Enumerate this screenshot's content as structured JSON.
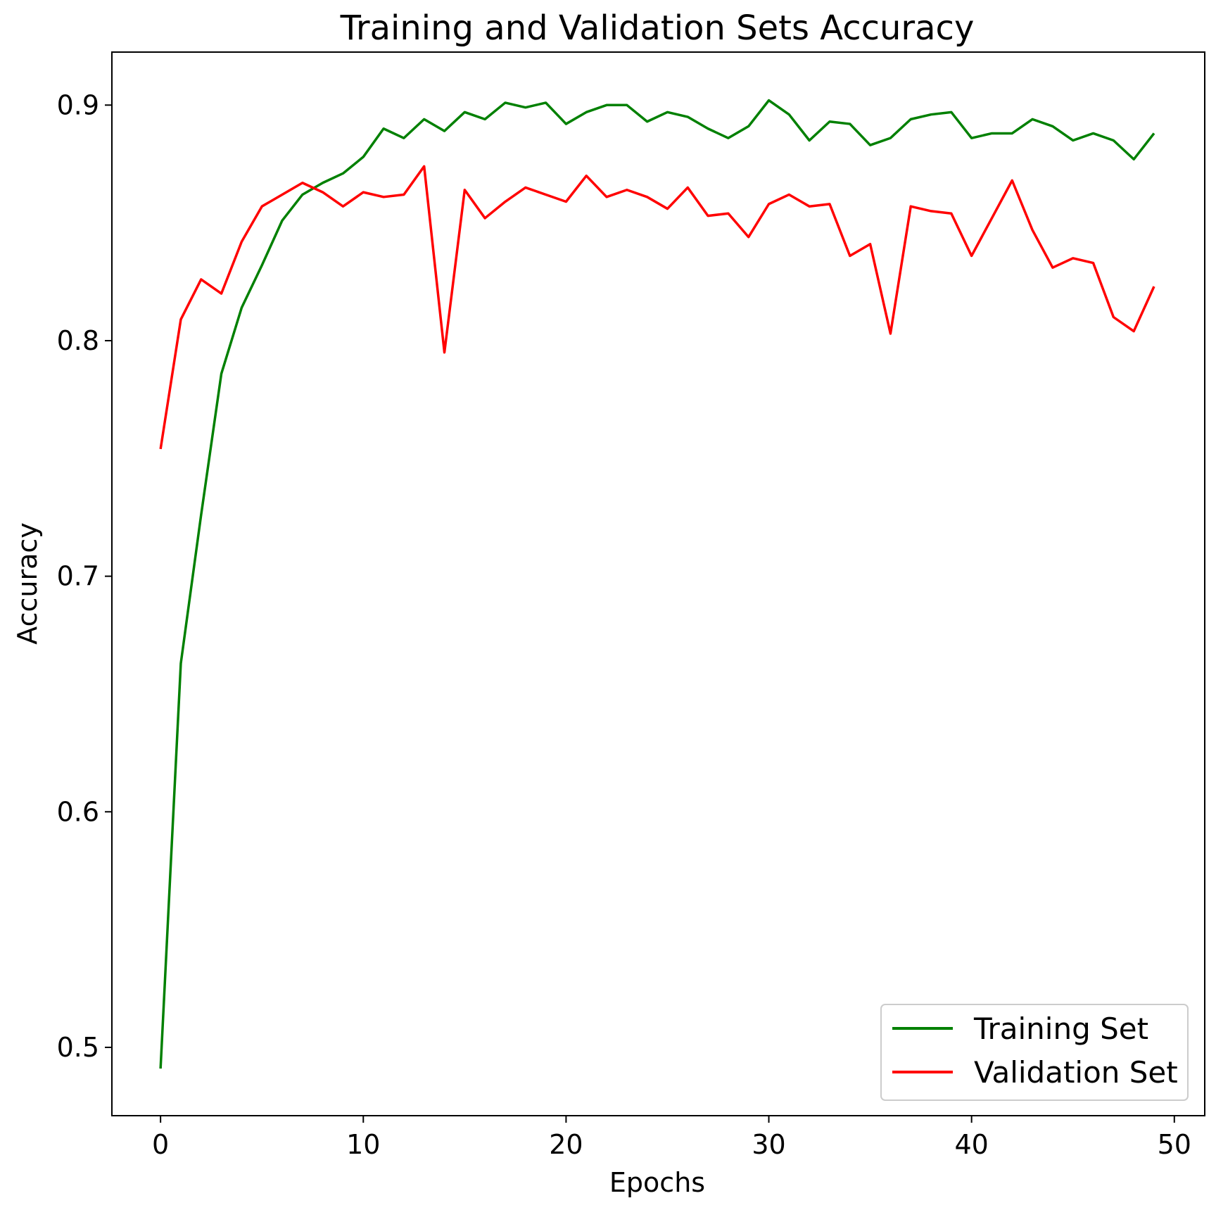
{
  "chart_data": {
    "type": "line",
    "title": "Training and Validation Sets Accuracy",
    "xlabel": "Epochs",
    "ylabel": "Accuracy",
    "xlim": [
      -2.4,
      51.5
    ],
    "ylim": [
      0.471,
      0.9225
    ],
    "xticks": [
      0,
      10,
      20,
      30,
      40,
      50
    ],
    "xtick_labels": [
      "0",
      "10",
      "20",
      "30",
      "40",
      "50"
    ],
    "yticks": [
      0.5,
      0.6,
      0.7,
      0.8,
      0.9
    ],
    "ytick_labels": [
      "0.5",
      "0.6",
      "0.7",
      "0.8",
      "0.9"
    ],
    "grid": false,
    "legend_position": "lower right",
    "x": [
      0,
      1,
      2,
      3,
      4,
      5,
      6,
      7,
      8,
      9,
      10,
      11,
      12,
      13,
      14,
      15,
      16,
      17,
      18,
      19,
      20,
      21,
      22,
      23,
      24,
      25,
      26,
      27,
      28,
      29,
      30,
      31,
      32,
      33,
      34,
      35,
      36,
      37,
      38,
      39,
      40,
      41,
      42,
      43,
      44,
      45,
      46,
      47,
      48,
      49
    ],
    "series": [
      {
        "name": "Training Set",
        "color": "#008000",
        "values": [
          0.491,
          0.663,
          0.726,
          0.786,
          0.814,
          0.832,
          0.851,
          0.862,
          0.867,
          0.871,
          0.878,
          0.89,
          0.886,
          0.894,
          0.889,
          0.897,
          0.894,
          0.901,
          0.899,
          0.901,
          0.892,
          0.897,
          0.9,
          0.9,
          0.893,
          0.897,
          0.895,
          0.89,
          0.886,
          0.891,
          0.902,
          0.896,
          0.885,
          0.893,
          0.892,
          0.883,
          0.886,
          0.894,
          0.896,
          0.897,
          0.886,
          0.888,
          0.888,
          0.894,
          0.891,
          0.885,
          0.888,
          0.885,
          0.877,
          0.888
        ]
      },
      {
        "name": "Validation Set",
        "color": "#ff0000",
        "values": [
          0.754,
          0.809,
          0.826,
          0.82,
          0.842,
          0.857,
          0.862,
          0.867,
          0.863,
          0.857,
          0.863,
          0.861,
          0.862,
          0.874,
          0.795,
          0.864,
          0.852,
          0.859,
          0.865,
          0.862,
          0.859,
          0.87,
          0.861,
          0.864,
          0.861,
          0.856,
          0.865,
          0.853,
          0.854,
          0.844,
          0.858,
          0.862,
          0.857,
          0.858,
          0.836,
          0.841,
          0.803,
          0.857,
          0.855,
          0.854,
          0.836,
          0.852,
          0.868,
          0.847,
          0.831,
          0.835,
          0.833,
          0.81,
          0.804,
          0.823
        ]
      }
    ]
  }
}
